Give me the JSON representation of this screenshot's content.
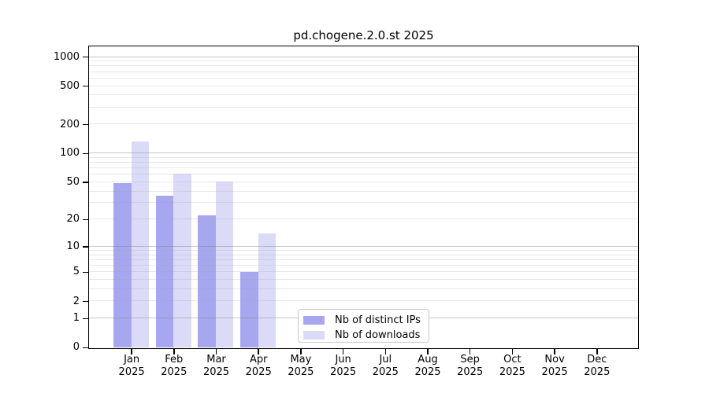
{
  "chart_data": {
    "type": "bar",
    "title": "pd.chogene.2.0.st 2025",
    "categories": [
      "Jan",
      "Feb",
      "Mar",
      "Apr",
      "May",
      "Jun",
      "Jul",
      "Aug",
      "Sep",
      "Oct",
      "Nov",
      "Dec"
    ],
    "x_tick_year": "2025",
    "series": [
      {
        "name": "Nb of distinct IPs",
        "color": "#a7a7ef",
        "values": [
          48,
          36,
          22,
          5,
          0,
          0,
          0,
          0,
          0,
          0,
          0,
          0
        ]
      },
      {
        "name": "Nb of downloads",
        "color": "#dbdbf8",
        "values": [
          133,
          61,
          50,
          14,
          0,
          0,
          0,
          0,
          0,
          0,
          0,
          0
        ]
      }
    ],
    "xlabel": "",
    "ylabel": "",
    "yscale": "log1p",
    "yticks": [
      0,
      1,
      2,
      5,
      10,
      20,
      50,
      100,
      200,
      500,
      1000
    ],
    "ylim": [
      0,
      1270
    ],
    "grid": "horizontal; dark major lines at powers of 10, faint log minor lines",
    "legend_position": "inside bottom-center",
    "colors": {
      "axis": "#000000",
      "background": "#ffffff",
      "major_grid": "#cccccc",
      "minor_grid": "#e9e9e9",
      "legend_border": "#c9c9c9"
    }
  }
}
